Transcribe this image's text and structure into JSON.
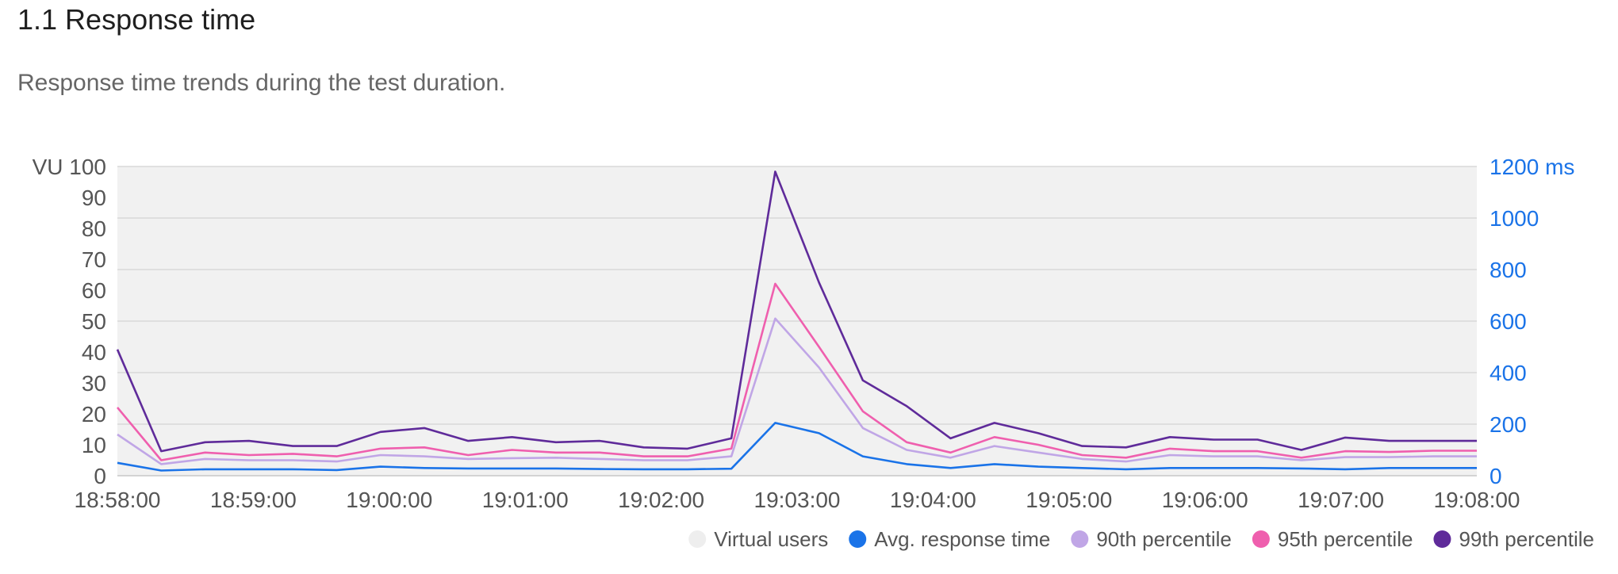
{
  "section": {
    "title": "1.1 Response time",
    "description": "Response time trends during the test duration."
  },
  "colors": {
    "virtual_users": "#eeeeee",
    "avg": "#1a73e8",
    "p90": "#c0a6e6",
    "p95": "#ef5fae",
    "p99": "#5f2b9a",
    "right_axis": "#1a73e8"
  },
  "chart_data": {
    "type": "line",
    "y_left": {
      "label": "VU",
      "ylim": [
        0,
        100
      ],
      "ticks": [
        "0",
        "10",
        "20",
        "30",
        "40",
        "50",
        "60",
        "70",
        "80",
        "90",
        "100"
      ]
    },
    "y_right": {
      "unit": "ms",
      "ylim": [
        0,
        1200
      ],
      "ticks": [
        "0",
        "200",
        "400",
        "600",
        "800",
        "1000",
        "1200"
      ]
    },
    "x_ticks": [
      "18:58:00",
      "18:59:00",
      "19:00:00",
      "19:01:00",
      "19:02:00",
      "19:03:00",
      "19:04:00",
      "19:05:00",
      "19:06:00",
      "19:07:00",
      "19:08:00"
    ],
    "grid": true,
    "legend_position": "bottom-right",
    "series": [
      {
        "name": "Virtual users",
        "axis": "left",
        "values": [
          100,
          100,
          100,
          100,
          100,
          100,
          100,
          100,
          100,
          100,
          100,
          100,
          100,
          100,
          100,
          100,
          100,
          100,
          100,
          100,
          100,
          100,
          100,
          100,
          100,
          100,
          100,
          100,
          100,
          100,
          100,
          100,
          100,
          100,
          100,
          100,
          100,
          100,
          100,
          100,
          100
        ]
      },
      {
        "name": "Avg. response time",
        "axis": "right",
        "values": [
          50,
          20,
          25,
          25,
          25,
          22,
          35,
          30,
          28,
          28,
          28,
          26,
          25,
          25,
          27,
          205,
          165,
          75,
          45,
          30,
          45,
          35,
          30,
          25,
          30,
          30,
          30,
          28,
          25,
          30,
          30,
          30
        ]
      },
      {
        "name": "90th percentile",
        "axis": "right",
        "values": [
          160,
          45,
          65,
          60,
          60,
          55,
          80,
          75,
          65,
          68,
          70,
          65,
          60,
          60,
          75,
          610,
          420,
          185,
          100,
          70,
          115,
          90,
          65,
          55,
          80,
          75,
          75,
          60,
          72,
          72,
          75,
          75
        ]
      },
      {
        "name": "95th percentile",
        "axis": "right",
        "values": [
          265,
          60,
          90,
          80,
          85,
          75,
          105,
          110,
          80,
          100,
          90,
          90,
          75,
          75,
          105,
          745,
          500,
          250,
          130,
          90,
          150,
          120,
          80,
          70,
          105,
          95,
          95,
          70,
          95,
          92,
          97,
          97
        ]
      },
      {
        "name": "99th percentile",
        "axis": "right",
        "values": [
          490,
          95,
          130,
          135,
          115,
          115,
          170,
          185,
          135,
          150,
          130,
          135,
          110,
          105,
          145,
          1180,
          750,
          370,
          270,
          145,
          205,
          165,
          115,
          110,
          150,
          140,
          140,
          100,
          148,
          135,
          135,
          135
        ]
      }
    ]
  }
}
